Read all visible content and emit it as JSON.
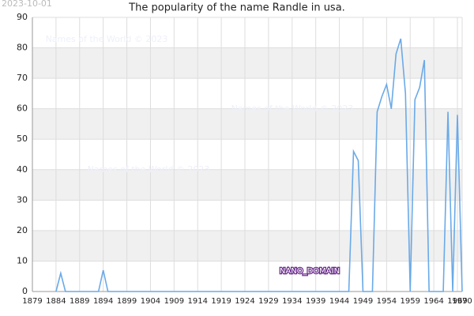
{
  "chart_data": {
    "type": "line",
    "title": "The popularity of the name Randle in usa.",
    "date_stamp": "2023-10-01",
    "watermark": "Names of the World © 2023",
    "annotation": "NANO_DOMAIN",
    "x": [
      1884,
      1885,
      1886,
      1893,
      1894,
      1895,
      1946,
      1947,
      1948,
      1949,
      1951,
      1952,
      1953,
      1954,
      1955,
      1956,
      1957,
      1958,
      1959,
      1960,
      1961,
      1962,
      1963,
      1966,
      1967,
      1968,
      1969,
      1970
    ],
    "series": [
      {
        "name": "Randle",
        "color": "#6aaae8",
        "values": [
          0,
          6,
          0,
          0,
          7,
          0,
          0,
          46,
          43,
          0,
          0,
          59,
          64,
          68,
          60,
          78,
          83,
          65,
          0,
          63,
          67,
          76,
          0,
          0,
          59,
          0,
          58,
          0
        ]
      }
    ],
    "xlim": [
      1879,
      1970
    ],
    "xticks": [
      1879,
      1884,
      1889,
      1894,
      1899,
      1904,
      1909,
      1914,
      1919,
      1924,
      1929,
      1934,
      1939,
      1944,
      1949,
      1954,
      1959,
      1964,
      1969,
      1970
    ],
    "ylim": [
      0,
      90
    ],
    "yticks": [
      0,
      10,
      20,
      30,
      40,
      50,
      60,
      70,
      80,
      90
    ],
    "grid": true
  }
}
